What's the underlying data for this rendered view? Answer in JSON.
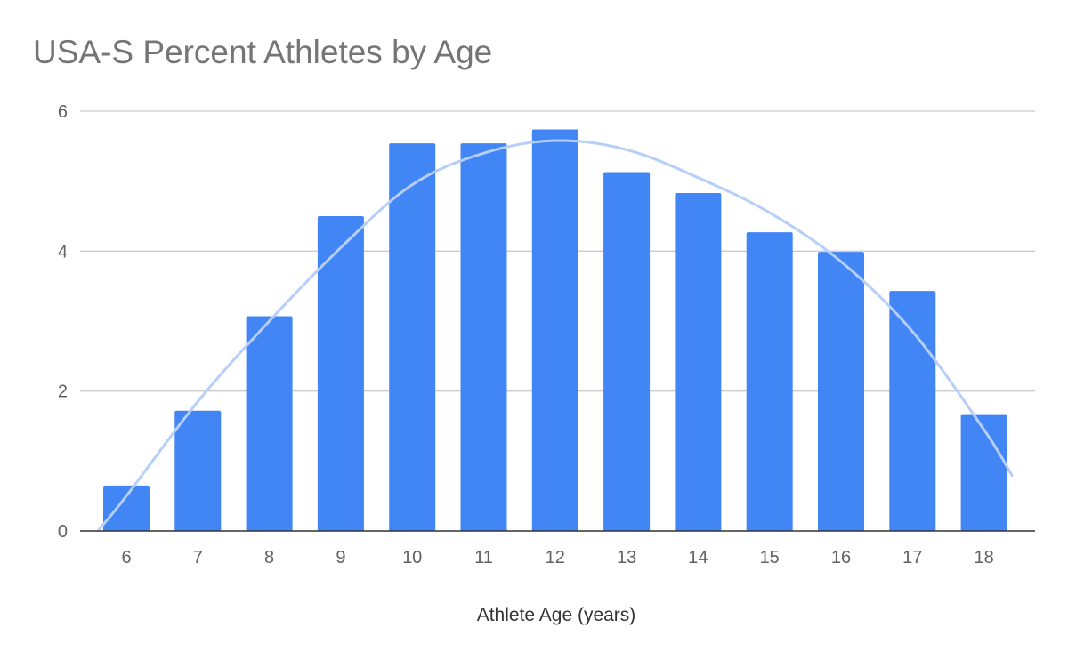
{
  "chart_data": {
    "type": "bar",
    "title": "USA-S Percent Athletes by Age",
    "xlabel": "Athlete Age (years)",
    "ylabel": "",
    "categories": [
      "6",
      "7",
      "8",
      "9",
      "10",
      "11",
      "12",
      "13",
      "14",
      "15",
      "16",
      "17",
      "18"
    ],
    "values": [
      0.65,
      1.72,
      3.07,
      4.5,
      5.54,
      5.54,
      5.74,
      5.13,
      4.83,
      4.27,
      3.99,
      3.43,
      1.67
    ],
    "ylim": [
      0,
      6
    ],
    "yticks": [
      0,
      2,
      4,
      6
    ],
    "grid": true,
    "legend": "none",
    "trendline": {
      "type": "polynomial",
      "x": [
        5.6,
        6,
        7,
        8,
        9,
        10,
        11,
        12,
        13,
        14,
        15,
        16,
        17,
        18,
        18.4
      ],
      "y": [
        0.0,
        0.5,
        1.85,
        3.0,
        4.05,
        4.95,
        5.4,
        5.58,
        5.45,
        5.05,
        4.55,
        3.85,
        2.85,
        1.45,
        0.78
      ]
    },
    "colors": {
      "bar": "#4285F4",
      "trendline": "#B5CFF8",
      "grid": "#CCCCCC",
      "axis": "#333333"
    }
  }
}
